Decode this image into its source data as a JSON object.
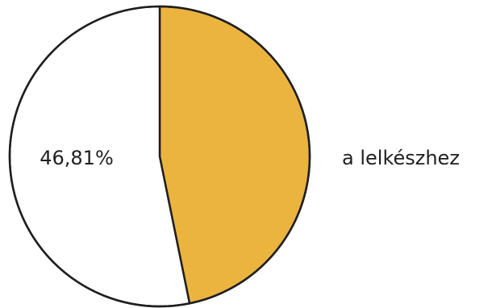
{
  "chart_data": {
    "type": "pie",
    "slices": [
      {
        "label": "a lelkészhez",
        "value": 46.81,
        "color": "#ebb43f"
      },
      {
        "label": "",
        "value": 53.19,
        "color": "#ffffff"
      }
    ],
    "data_label": "46,81%",
    "legend": [
      "a lelkészhez"
    ],
    "legend_position": "right"
  }
}
